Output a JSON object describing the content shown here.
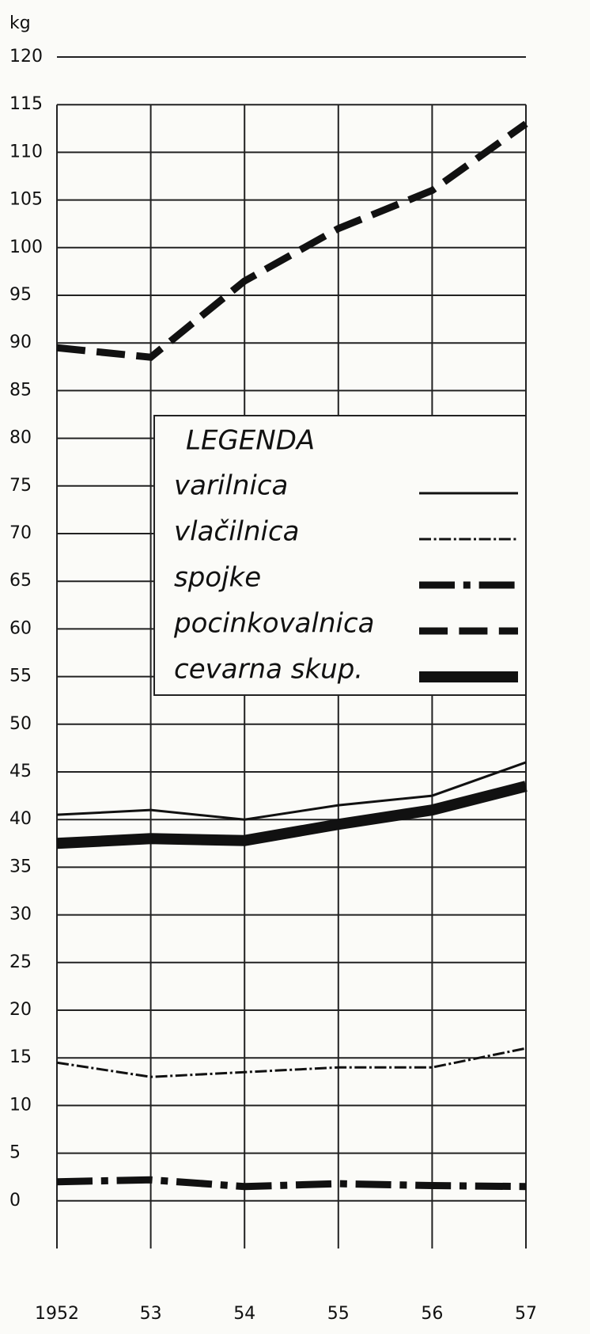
{
  "chart_data": {
    "type": "line",
    "y_label": "kg",
    "categories": [
      "1952",
      "53",
      "54",
      "55",
      "56",
      "57"
    ],
    "ylim": [
      -5,
      120
    ],
    "yticks": [
      0,
      5,
      10,
      15,
      20,
      25,
      30,
      35,
      40,
      45,
      50,
      55,
      60,
      65,
      70,
      75,
      80,
      85,
      90,
      95,
      100,
      105,
      110,
      115,
      120
    ],
    "grid": true,
    "legend_title": "LEGENDA",
    "series": [
      {
        "name": "varilnica",
        "color": "#111111",
        "linestyle": "solid",
        "linewidth": 3,
        "values": [
          40.5,
          41,
          40,
          41.5,
          42.5,
          46
        ]
      },
      {
        "name": "vlačilnica",
        "color": "#111111",
        "linestyle": "dashdot",
        "linewidth": 3,
        "values": [
          14.5,
          13,
          13.5,
          14,
          14,
          16
        ]
      },
      {
        "name": "spojke",
        "color": "#111111",
        "linestyle": "dashdot",
        "linewidth": 9,
        "values": [
          2,
          2.2,
          1.5,
          1.8,
          1.6,
          1.5
        ]
      },
      {
        "name": "pocinkovalnica",
        "color": "#111111",
        "linestyle": "dashed",
        "linewidth": 9,
        "values": [
          89.5,
          88.5,
          96.5,
          102,
          106,
          113
        ]
      },
      {
        "name": "cevarna skup.",
        "color": "#111111",
        "linestyle": "solid",
        "linewidth": 14,
        "values": [
          37.5,
          38,
          37.8,
          39.5,
          41,
          43.5
        ]
      }
    ]
  }
}
